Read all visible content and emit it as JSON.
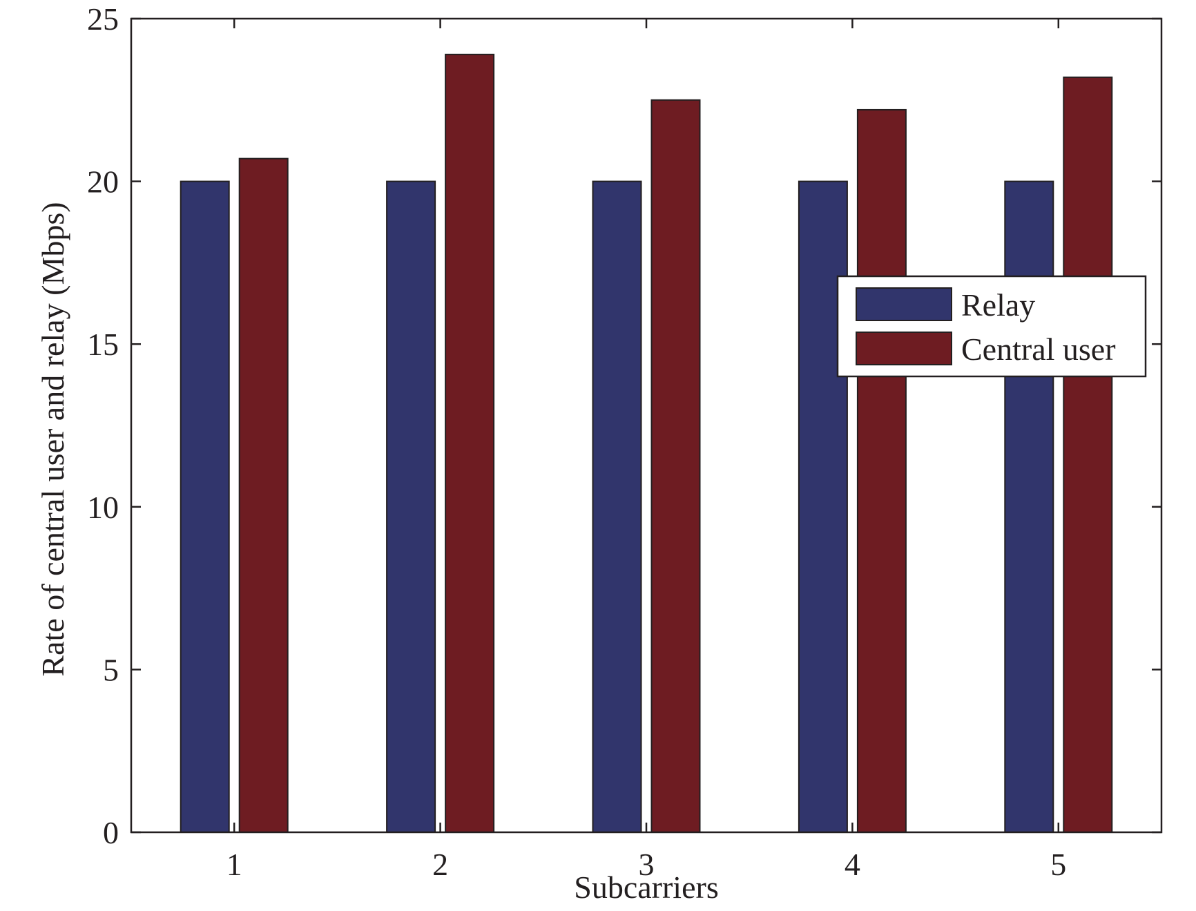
{
  "chart_data": {
    "type": "bar",
    "title": "",
    "xlabel": "Subcarriers",
    "ylabel": "Rate of central user and relay (Mbps)",
    "categories": [
      "1",
      "2",
      "3",
      "4",
      "5"
    ],
    "ylim": [
      0,
      25
    ],
    "yticks": [
      "0",
      "5",
      "10",
      "15",
      "20",
      "25"
    ],
    "grid": false,
    "legend_position": "right",
    "series": [
      {
        "name": "Relay",
        "color": "#31356c",
        "values": [
          20,
          20,
          20,
          20,
          20
        ]
      },
      {
        "name": "Central user",
        "color": "#6e1c22",
        "values": [
          20.7,
          23.9,
          22.5,
          22.2,
          23.2
        ]
      }
    ]
  }
}
